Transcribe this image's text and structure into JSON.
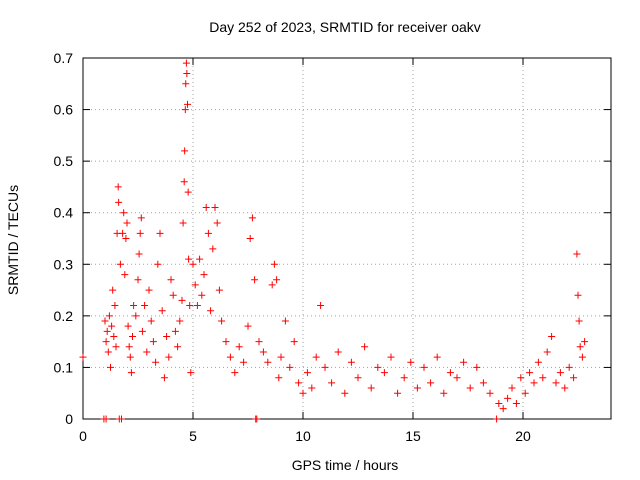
{
  "chart_data": {
    "type": "scatter",
    "title": "Day 252 of 2023, SRMTID for receiver oakv",
    "xlabel": "GPS time / hours",
    "ylabel": "SRMTID / TECUs",
    "xlim": [
      0,
      24
    ],
    "ylim": [
      0,
      0.7
    ],
    "xticks": [
      0,
      5,
      10,
      15,
      20
    ],
    "xtick_labels": [
      "0",
      "5",
      "10",
      "15",
      "20"
    ],
    "yticks": [
      0,
      0.1,
      0.2,
      0.3,
      0.4,
      0.5,
      0.6,
      0.7
    ],
    "ytick_labels": [
      "0",
      "0.1",
      "0.2",
      "0.3",
      "0.4",
      "0.5",
      "0.6",
      "0.7"
    ],
    "grid": true,
    "marker": "plus",
    "color": "#ff0000",
    "series": [
      {
        "name": "SRMTID",
        "points": [
          [
            0.0,
            0.12
          ],
          [
            0.95,
            0.0
          ],
          [
            1.05,
            0.0
          ],
          [
            1.0,
            0.19
          ],
          [
            1.05,
            0.15
          ],
          [
            1.1,
            0.17
          ],
          [
            1.15,
            0.13
          ],
          [
            1.2,
            0.2
          ],
          [
            1.25,
            0.1
          ],
          [
            1.3,
            0.18
          ],
          [
            1.35,
            0.25
          ],
          [
            1.4,
            0.16
          ],
          [
            1.45,
            0.22
          ],
          [
            1.5,
            0.14
          ],
          [
            1.55,
            0.36
          ],
          [
            1.6,
            0.45
          ],
          [
            1.62,
            0.42
          ],
          [
            1.65,
            0.0
          ],
          [
            1.7,
            0.3
          ],
          [
            1.75,
            0.0
          ],
          [
            1.8,
            0.36
          ],
          [
            1.85,
            0.4
          ],
          [
            1.9,
            0.28
          ],
          [
            1.95,
            0.35
          ],
          [
            2.0,
            0.38
          ],
          [
            2.05,
            0.18
          ],
          [
            2.1,
            0.14
          ],
          [
            2.15,
            0.12
          ],
          [
            2.2,
            0.09
          ],
          [
            2.25,
            0.16
          ],
          [
            2.3,
            0.22
          ],
          [
            2.4,
            0.2
          ],
          [
            2.5,
            0.27
          ],
          [
            2.55,
            0.32
          ],
          [
            2.6,
            0.36
          ],
          [
            2.65,
            0.39
          ],
          [
            2.7,
            0.17
          ],
          [
            2.8,
            0.22
          ],
          [
            2.9,
            0.13
          ],
          [
            3.0,
            0.25
          ],
          [
            3.1,
            0.19
          ],
          [
            3.2,
            0.15
          ],
          [
            3.3,
            0.11
          ],
          [
            3.4,
            0.3
          ],
          [
            3.5,
            0.36
          ],
          [
            3.6,
            0.21
          ],
          [
            3.7,
            0.08
          ],
          [
            3.8,
            0.16
          ],
          [
            3.9,
            0.12
          ],
          [
            4.0,
            0.27
          ],
          [
            4.1,
            0.24
          ],
          [
            4.2,
            0.17
          ],
          [
            4.3,
            0.14
          ],
          [
            4.4,
            0.19
          ],
          [
            4.5,
            0.23
          ],
          [
            4.55,
            0.38
          ],
          [
            4.6,
            0.46
          ],
          [
            4.62,
            0.52
          ],
          [
            4.65,
            0.6
          ],
          [
            4.67,
            0.65
          ],
          [
            4.7,
            0.69
          ],
          [
            4.72,
            0.67
          ],
          [
            4.75,
            0.61
          ],
          [
            4.78,
            0.44
          ],
          [
            4.8,
            0.31
          ],
          [
            4.85,
            0.22
          ],
          [
            4.9,
            0.09
          ],
          [
            5.0,
            0.3
          ],
          [
            5.1,
            0.26
          ],
          [
            5.2,
            0.22
          ],
          [
            5.3,
            0.31
          ],
          [
            5.4,
            0.24
          ],
          [
            5.5,
            0.28
          ],
          [
            5.6,
            0.41
          ],
          [
            5.7,
            0.36
          ],
          [
            5.8,
            0.21
          ],
          [
            5.9,
            0.33
          ],
          [
            6.0,
            0.41
          ],
          [
            6.1,
            0.38
          ],
          [
            6.2,
            0.25
          ],
          [
            6.3,
            0.19
          ],
          [
            6.5,
            0.15
          ],
          [
            6.7,
            0.12
          ],
          [
            6.9,
            0.09
          ],
          [
            7.1,
            0.14
          ],
          [
            7.3,
            0.11
          ],
          [
            7.5,
            0.18
          ],
          [
            7.6,
            0.35
          ],
          [
            7.7,
            0.39
          ],
          [
            7.8,
            0.27
          ],
          [
            7.85,
            0.0
          ],
          [
            7.9,
            0.0
          ],
          [
            8.0,
            0.15
          ],
          [
            8.2,
            0.13
          ],
          [
            8.4,
            0.11
          ],
          [
            8.6,
            0.26
          ],
          [
            8.7,
            0.3
          ],
          [
            8.8,
            0.27
          ],
          [
            8.9,
            0.08
          ],
          [
            9.0,
            0.12
          ],
          [
            9.2,
            0.19
          ],
          [
            9.4,
            0.1
          ],
          [
            9.6,
            0.15
          ],
          [
            9.8,
            0.07
          ],
          [
            10.0,
            0.05
          ],
          [
            10.2,
            0.09
          ],
          [
            10.4,
            0.06
          ],
          [
            10.6,
            0.12
          ],
          [
            10.8,
            0.22
          ],
          [
            11.0,
            0.1
          ],
          [
            11.3,
            0.07
          ],
          [
            11.6,
            0.13
          ],
          [
            11.9,
            0.05
          ],
          [
            12.2,
            0.11
          ],
          [
            12.5,
            0.08
          ],
          [
            12.8,
            0.14
          ],
          [
            13.1,
            0.06
          ],
          [
            13.4,
            0.1
          ],
          [
            13.7,
            0.09
          ],
          [
            14.0,
            0.12
          ],
          [
            14.3,
            0.05
          ],
          [
            14.6,
            0.08
          ],
          [
            14.9,
            0.11
          ],
          [
            15.2,
            0.06
          ],
          [
            15.5,
            0.1
          ],
          [
            15.8,
            0.07
          ],
          [
            16.1,
            0.12
          ],
          [
            16.4,
            0.05
          ],
          [
            16.7,
            0.09
          ],
          [
            17.0,
            0.08
          ],
          [
            17.3,
            0.11
          ],
          [
            17.6,
            0.06
          ],
          [
            17.9,
            0.1
          ],
          [
            18.2,
            0.07
          ],
          [
            18.5,
            0.05
          ],
          [
            18.8,
            0.0
          ],
          [
            18.9,
            0.03
          ],
          [
            19.1,
            0.02
          ],
          [
            19.3,
            0.04
          ],
          [
            19.5,
            0.06
          ],
          [
            19.7,
            0.03
          ],
          [
            19.9,
            0.08
          ],
          [
            20.1,
            0.05
          ],
          [
            20.3,
            0.09
          ],
          [
            20.5,
            0.07
          ],
          [
            20.7,
            0.11
          ],
          [
            20.9,
            0.08
          ],
          [
            21.1,
            0.13
          ],
          [
            21.3,
            0.16
          ],
          [
            21.5,
            0.07
          ],
          [
            21.7,
            0.09
          ],
          [
            21.9,
            0.06
          ],
          [
            22.1,
            0.1
          ],
          [
            22.3,
            0.08
          ],
          [
            22.45,
            0.32
          ],
          [
            22.5,
            0.24
          ],
          [
            22.55,
            0.19
          ],
          [
            22.6,
            0.14
          ],
          [
            22.7,
            0.12
          ],
          [
            22.8,
            0.15
          ]
        ]
      }
    ]
  }
}
